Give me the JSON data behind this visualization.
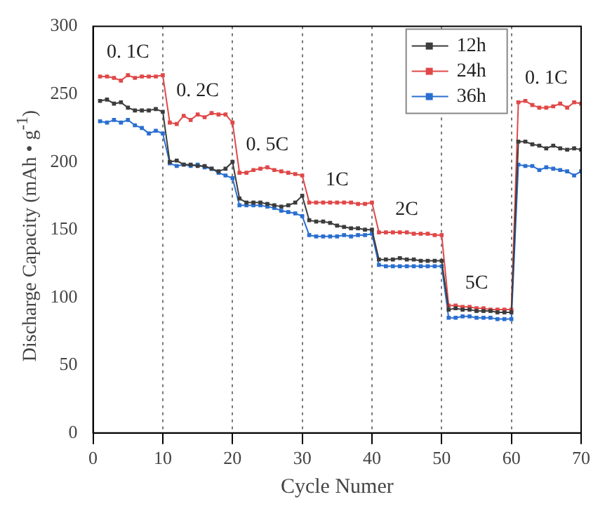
{
  "chart_data": {
    "type": "line",
    "xlabel": "Cycle Numer",
    "ylabel": "Discharge Capacity (mAh • g$^{-1}$)",
    "x": [
      1,
      2,
      3,
      4,
      5,
      6,
      7,
      8,
      9,
      10,
      11,
      12,
      13,
      14,
      15,
      16,
      17,
      18,
      19,
      20,
      21,
      22,
      23,
      24,
      25,
      26,
      27,
      28,
      29,
      30,
      31,
      32,
      33,
      34,
      35,
      36,
      37,
      38,
      39,
      40,
      41,
      42,
      43,
      44,
      45,
      46,
      47,
      48,
      49,
      50,
      51,
      52,
      53,
      54,
      55,
      56,
      57,
      58,
      59,
      60,
      61,
      62,
      63,
      64,
      65,
      66,
      67,
      68,
      69,
      70
    ],
    "series": [
      {
        "name": "12h",
        "color": "#3c3c3c",
        "values": [
          245,
          246,
          243,
          244,
          240,
          238,
          238,
          238,
          239,
          237,
          200,
          201,
          198,
          198,
          197,
          197,
          195,
          193,
          195,
          200,
          173,
          170,
          170,
          170,
          169,
          168,
          167,
          168,
          170,
          175,
          157,
          156,
          156,
          155,
          153,
          152,
          151,
          151,
          150,
          150,
          128,
          128,
          128,
          129,
          128,
          128,
          127,
          127,
          127,
          127,
          91,
          92,
          91,
          91,
          90,
          90,
          90,
          89,
          89,
          89,
          215,
          215,
          213,
          212,
          210,
          212,
          210,
          209,
          210,
          209
        ]
      },
      {
        "name": "24h",
        "color": "#e04848",
        "values": [
          263,
          263,
          262,
          260,
          264,
          262,
          263,
          263,
          263,
          264,
          229,
          228,
          234,
          231,
          235,
          233,
          236,
          235,
          235,
          229,
          192,
          192,
          194,
          195,
          196,
          194,
          193,
          192,
          191,
          190,
          170,
          170,
          170,
          170,
          170,
          170,
          170,
          169,
          169,
          170,
          148,
          148,
          148,
          148,
          148,
          147,
          147,
          147,
          146,
          146,
          94,
          94,
          93,
          93,
          92,
          92,
          91,
          91,
          91,
          91,
          244,
          245,
          242,
          240,
          240,
          241,
          243,
          240,
          244,
          243
        ]
      },
      {
        "name": "36h",
        "color": "#2a6fd0",
        "values": [
          230,
          229,
          231,
          229,
          231,
          227,
          225,
          221,
          223,
          221,
          199,
          197,
          198,
          197,
          198,
          196,
          195,
          192,
          190,
          188,
          168,
          168,
          168,
          168,
          167,
          166,
          164,
          163,
          162,
          160,
          146,
          145,
          145,
          145,
          145,
          146,
          145,
          146,
          146,
          147,
          124,
          123,
          123,
          123,
          123,
          123,
          123,
          123,
          123,
          123,
          85,
          85,
          86,
          86,
          85,
          85,
          85,
          84,
          84,
          84,
          198,
          197,
          197,
          194,
          196,
          195,
          194,
          193,
          190,
          193
        ]
      }
    ],
    "xlim": [
      0,
      70
    ],
    "xticks": [
      0,
      10,
      20,
      30,
      40,
      50,
      60,
      70
    ],
    "ylim": [
      0,
      300
    ],
    "yticks": [
      0,
      50,
      100,
      150,
      200,
      250,
      300
    ],
    "grid": "x",
    "legend": "top right",
    "marker": "square",
    "line_style": "solid",
    "annotations": [
      "0. 1C",
      "0. 2C",
      "0. 5C",
      "1C",
      "2C",
      "5C",
      "0. 1C"
    ]
  }
}
